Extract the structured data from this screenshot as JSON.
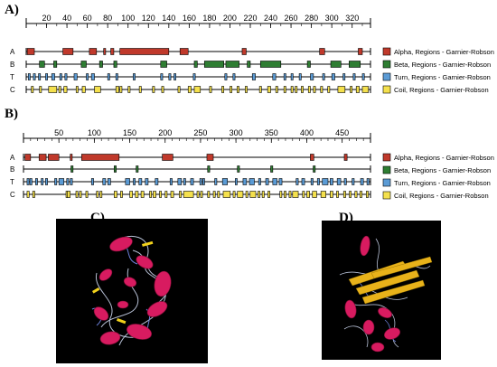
{
  "panel_labels": {
    "a": "A)",
    "b": "B)",
    "c": "C)",
    "d": "D)"
  },
  "track_labels": [
    "A",
    "B",
    "T",
    "C"
  ],
  "legend": [
    {
      "key": "alpha",
      "label": "Alpha, Regions - Garnier-Robson",
      "color": "#c0392b"
    },
    {
      "key": "beta",
      "label": "Beta, Regions - Garnier-Robson",
      "color": "#2e7d32"
    },
    {
      "key": "turn",
      "label": "Turn, Regions - Garnier-Robson",
      "color": "#5b9bd5"
    },
    {
      "key": "coil",
      "label": "Coil, Regions - Garnier-Robson",
      "color": "#f4e04d"
    }
  ],
  "chart_data": [
    {
      "type": "track",
      "panel": "A)",
      "axis_ticks": [
        20,
        40,
        60,
        80,
        100,
        120,
        140,
        160,
        180,
        200,
        220,
        240,
        260,
        280,
        300,
        320
      ],
      "xlim": [
        0,
        338
      ],
      "tracks": {
        "A": [
          [
            1,
            8
          ],
          [
            36,
            46
          ],
          [
            62,
            69
          ],
          [
            76,
            78
          ],
          [
            83,
            86
          ],
          [
            92,
            140
          ],
          [
            151,
            159
          ],
          [
            212,
            216
          ],
          [
            288,
            293
          ],
          [
            326,
            330
          ]
        ],
        "B": [
          [
            13,
            18
          ],
          [
            27,
            30
          ],
          [
            54,
            59
          ],
          [
            72,
            75
          ],
          [
            86,
            89
          ],
          [
            132,
            138
          ],
          [
            165,
            168
          ],
          [
            175,
            194
          ],
          [
            196,
            209
          ],
          [
            217,
            220
          ],
          [
            230,
            250
          ],
          [
            276,
            279
          ],
          [
            299,
            309
          ],
          [
            317,
            328
          ]
        ],
        "T": [
          [
            2,
            4
          ],
          [
            7,
            9
          ],
          [
            12,
            14
          ],
          [
            19,
            21
          ],
          [
            25,
            28
          ],
          [
            33,
            35
          ],
          [
            38,
            40
          ],
          [
            47,
            50
          ],
          [
            59,
            61
          ],
          [
            64,
            67
          ],
          [
            80,
            82
          ],
          [
            88,
            90
          ],
          [
            105,
            107
          ],
          [
            132,
            134
          ],
          [
            140,
            142
          ],
          [
            145,
            147
          ],
          [
            164,
            166
          ],
          [
            195,
            197
          ],
          [
            203,
            205
          ],
          [
            222,
            225
          ],
          [
            242,
            245
          ],
          [
            253,
            255
          ],
          [
            260,
            262
          ],
          [
            268,
            270
          ],
          [
            279,
            282
          ],
          [
            291,
            293
          ],
          [
            300,
            303
          ],
          [
            311,
            313
          ],
          [
            321,
            323
          ],
          [
            330,
            332
          ]
        ],
        "C": [
          [
            5,
            7
          ],
          [
            13,
            15
          ],
          [
            22,
            30
          ],
          [
            32,
            34
          ],
          [
            37,
            40
          ],
          [
            49,
            51
          ],
          [
            55,
            58
          ],
          [
            67,
            73
          ],
          [
            88,
            91
          ],
          [
            92,
            94
          ],
          [
            100,
            102
          ],
          [
            111,
            113
          ],
          [
            124,
            126
          ],
          [
            133,
            135
          ],
          [
            149,
            151
          ],
          [
            159,
            162
          ],
          [
            165,
            171
          ],
          [
            180,
            182
          ],
          [
            192,
            194
          ],
          [
            200,
            202
          ],
          [
            207,
            209
          ],
          [
            215,
            217
          ],
          [
            229,
            231
          ],
          [
            237,
            240
          ],
          [
            245,
            247
          ],
          [
            253,
            255
          ],
          [
            260,
            262
          ],
          [
            264,
            266
          ],
          [
            270,
            272
          ],
          [
            277,
            279
          ],
          [
            282,
            284
          ],
          [
            289,
            291
          ],
          [
            296,
            298
          ],
          [
            306,
            313
          ],
          [
            318,
            320
          ],
          [
            324,
            327
          ],
          [
            330,
            336
          ]
        ]
      }
    },
    {
      "type": "track",
      "panel": "B)",
      "axis_ticks": [
        50,
        100,
        150,
        200,
        250,
        300,
        350,
        400,
        450
      ],
      "xlim": [
        0,
        490
      ],
      "tracks": {
        "A": [
          [
            2,
            10
          ],
          [
            22,
            32
          ],
          [
            35,
            50
          ],
          [
            66,
            68
          ],
          [
            82,
            135
          ],
          [
            196,
            211
          ],
          [
            259,
            268
          ],
          [
            405,
            410
          ],
          [
            453,
            457
          ]
        ],
        "B": [
          [
            67,
            70
          ],
          [
            128,
            131
          ],
          [
            159,
            162
          ],
          [
            260,
            263
          ],
          [
            302,
            305
          ],
          [
            349,
            352
          ],
          [
            409,
            412
          ]
        ],
        "T": [
          [
            5,
            7
          ],
          [
            9,
            12
          ],
          [
            17,
            19
          ],
          [
            25,
            27
          ],
          [
            31,
            34
          ],
          [
            44,
            47
          ],
          [
            50,
            57
          ],
          [
            61,
            63
          ],
          [
            66,
            69
          ],
          [
            96,
            99
          ],
          [
            112,
            116
          ],
          [
            119,
            123
          ],
          [
            144,
            150
          ],
          [
            155,
            157
          ],
          [
            163,
            167
          ],
          [
            172,
            176
          ],
          [
            186,
            190
          ],
          [
            207,
            210
          ],
          [
            218,
            223
          ],
          [
            226,
            229
          ],
          [
            236,
            240
          ],
          [
            249,
            251
          ],
          [
            253,
            255
          ],
          [
            270,
            273
          ],
          [
            281,
            288
          ],
          [
            299,
            301
          ],
          [
            310,
            315
          ],
          [
            319,
            326
          ],
          [
            332,
            335
          ],
          [
            342,
            346
          ],
          [
            352,
            358
          ],
          [
            361,
            365
          ],
          [
            385,
            388
          ],
          [
            393,
            397
          ],
          [
            406,
            409
          ],
          [
            415,
            418
          ],
          [
            422,
            430
          ],
          [
            433,
            437
          ],
          [
            443,
            448
          ],
          [
            453,
            456
          ],
          [
            464,
            467
          ],
          [
            476,
            480
          ],
          [
            485,
            488
          ]
        ],
        "C": [
          [
            5,
            8
          ],
          [
            13,
            16
          ],
          [
            60,
            62
          ],
          [
            62,
            66
          ],
          [
            74,
            76
          ],
          [
            79,
            81
          ],
          [
            88,
            90
          ],
          [
            103,
            105
          ],
          [
            108,
            110
          ],
          [
            128,
            132
          ],
          [
            137,
            139
          ],
          [
            150,
            154
          ],
          [
            158,
            162
          ],
          [
            166,
            170
          ],
          [
            178,
            180
          ],
          [
            183,
            187
          ],
          [
            192,
            194
          ],
          [
            200,
            202
          ],
          [
            208,
            212
          ],
          [
            220,
            222
          ],
          [
            226,
            240
          ],
          [
            245,
            247
          ],
          [
            250,
            252
          ],
          [
            260,
            262
          ],
          [
            268,
            270
          ],
          [
            274,
            276
          ],
          [
            282,
            292
          ],
          [
            296,
            298
          ],
          [
            302,
            310
          ],
          [
            314,
            316
          ],
          [
            320,
            328
          ],
          [
            331,
            334
          ],
          [
            337,
            340
          ],
          [
            345,
            348
          ],
          [
            362,
            364
          ],
          [
            368,
            370
          ],
          [
            375,
            377
          ],
          [
            380,
            388
          ],
          [
            394,
            396
          ],
          [
            400,
            404
          ],
          [
            408,
            414
          ],
          [
            420,
            427
          ],
          [
            433,
            437
          ],
          [
            442,
            444
          ],
          [
            452,
            455
          ],
          [
            460,
            462
          ],
          [
            468,
            471
          ],
          [
            475,
            478
          ],
          [
            484,
            487
          ]
        ]
      }
    }
  ]
}
